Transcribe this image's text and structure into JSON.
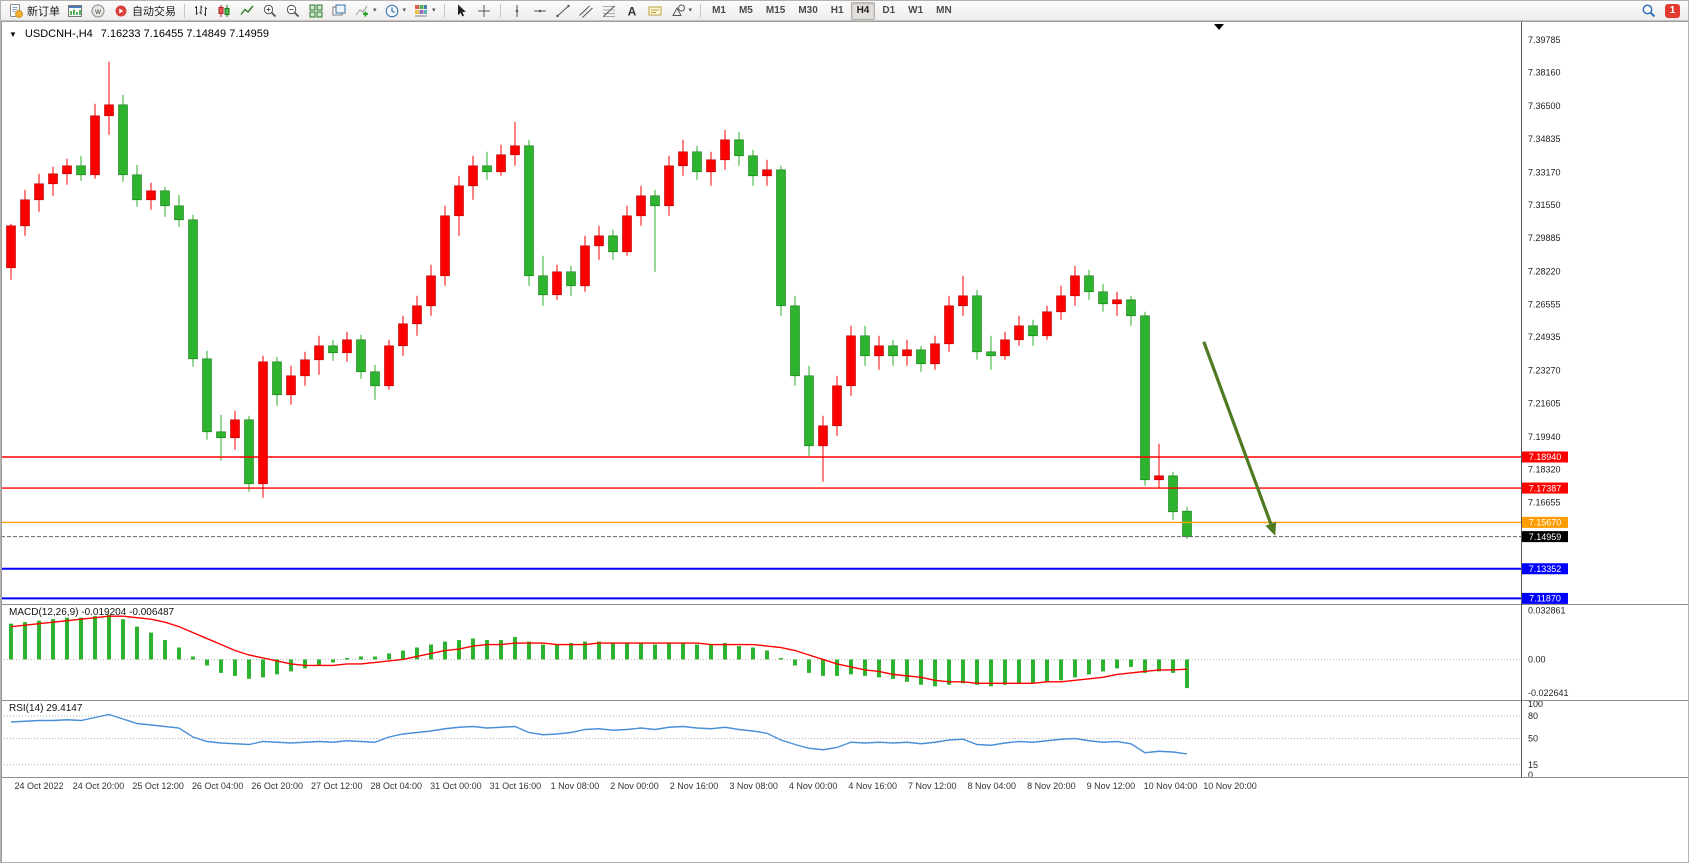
{
  "app": {
    "toolbar": {
      "badge": "1",
      "groups": [
        {
          "items": [
            {
              "name": "new-order-button",
              "icon": "new-order",
              "label": "新订单"
            },
            {
              "name": "open-chart-button",
              "icon": "chart-window"
            },
            {
              "name": "profiles-button",
              "icon": "profiles"
            },
            {
              "name": "auto-trading-button",
              "icon": "autotrade",
              "label": "自动交易"
            }
          ]
        },
        {
          "items": [
            {
              "name": "bar-chart-button",
              "icon": "bars"
            },
            {
              "name": "candlestick-chart-button",
              "icon": "candles"
            },
            {
              "name": "line-chart-button",
              "icon": "linechart"
            },
            {
              "name": "zoom-in-button",
              "icon": "zoom-in"
            },
            {
              "name": "zoom-out-button",
              "icon": "zoom-out"
            },
            {
              "name": "tile-windows-button",
              "icon": "tile"
            },
            {
              "name": "auto-arrange-button",
              "icon": "arrange"
            },
            {
              "name": "indicators-button",
              "icon": "indicators",
              "caret": true
            },
            {
              "name": "periods-button",
              "icon": "clock",
              "caret": true
            },
            {
              "name": "templates-button",
              "icon": "template",
              "caret": true
            }
          ]
        },
        {
          "items": [
            {
              "name": "cursor-button",
              "icon": "cursor"
            },
            {
              "name": "crosshair-button",
              "icon": "crosshair"
            }
          ]
        },
        {
          "items": [
            {
              "name": "vertical-line-button",
              "icon": "vline"
            },
            {
              "name": "horizontal-line-button",
              "icon": "hline"
            },
            {
              "name": "trendline-button",
              "icon": "tline"
            },
            {
              "name": "equidistant-channel-button",
              "icon": "channel"
            },
            {
              "name": "fibonacci-button",
              "icon": "fibo"
            },
            {
              "name": "text-button",
              "icon": "text"
            },
            {
              "name": "text-label-button",
              "icon": "label"
            },
            {
              "name": "shapes-button",
              "icon": "shapes",
              "caret": true
            }
          ]
        },
        {
          "type": "timeframes",
          "items": [
            "M1",
            "M5",
            "M15",
            "M30",
            "H1",
            "H4",
            "D1",
            "W1",
            "MN"
          ],
          "active": "H4"
        }
      ]
    }
  },
  "chart": {
    "symbol_title": "USDCNH-,H4",
    "ohlc": "7.16233 7.16455 7.14849 7.14959",
    "macd_label": "MACD(12,26,9) -0.019204 -0.006487",
    "rsi_label": "RSI(14) 29.4147"
  },
  "chart_data": {
    "type": "candlestick",
    "symbol": "USDCNH",
    "timeframe": "H4",
    "up_color": "#ff0000",
    "down_color": "#2db32d",
    "ylim": [
      7.1164,
      7.4074
    ],
    "y_axis_labels": [
      "7.39785",
      "7.38160",
      "7.36500",
      "7.34835",
      "7.33170",
      "7.31550",
      "7.29885",
      "7.28220",
      "7.26555",
      "7.24935",
      "7.23270",
      "7.21605",
      "7.19940",
      "7.18320",
      "7.16655"
    ],
    "x_labels": [
      "24 Oct 2022",
      "24 Oct 20:00",
      "25 Oct 12:00",
      "26 Oct 04:00",
      "26 Oct 20:00",
      "27 Oct 12:00",
      "28 Oct 04:00",
      "31 Oct 00:00",
      "31 Oct 16:00",
      "1 Nov 08:00",
      "2 Nov 00:00",
      "2 Nov 16:00",
      "3 Nov 08:00",
      "4 Nov 00:00",
      "4 Nov 16:00",
      "7 Nov 12:00",
      "8 Nov 04:00",
      "8 Nov 20:00",
      "9 Nov 12:00",
      "10 Nov 04:00",
      "10 Nov 20:00"
    ],
    "candles": [
      [
        7.284,
        7.306,
        7.278,
        7.305
      ],
      [
        7.305,
        7.323,
        7.3,
        7.318
      ],
      [
        7.318,
        7.331,
        7.312,
        7.326
      ],
      [
        7.326,
        7.3345,
        7.32,
        7.331
      ],
      [
        7.331,
        7.3385,
        7.3255,
        7.335
      ],
      [
        7.335,
        7.34,
        7.3275,
        7.3305
      ],
      [
        7.3305,
        7.366,
        7.3285,
        7.36
      ],
      [
        7.36,
        7.387,
        7.3505,
        7.3655
      ],
      [
        7.3655,
        7.3705,
        7.327,
        7.3305
      ],
      [
        7.3305,
        7.3355,
        7.3145,
        7.318
      ],
      [
        7.318,
        7.3265,
        7.313,
        7.3225
      ],
      [
        7.3225,
        7.3245,
        7.3095,
        7.315
      ],
      [
        7.315,
        7.3205,
        7.3045,
        7.308
      ],
      [
        7.308,
        7.3105,
        7.2345,
        7.2385
      ],
      [
        7.2385,
        7.2425,
        7.198,
        7.202
      ],
      [
        7.202,
        7.2105,
        7.1875,
        7.199
      ],
      [
        7.199,
        7.2125,
        7.193,
        7.208
      ],
      [
        7.208,
        7.21,
        7.172,
        7.176
      ],
      [
        7.176,
        7.24,
        7.169,
        7.237
      ],
      [
        7.237,
        7.2395,
        7.215,
        7.2205
      ],
      [
        7.2205,
        7.235,
        7.2155,
        7.23
      ],
      [
        7.23,
        7.242,
        7.225,
        7.238
      ],
      [
        7.238,
        7.25,
        7.2305,
        7.245
      ],
      [
        7.245,
        7.248,
        7.2375,
        7.2415
      ],
      [
        7.2415,
        7.252,
        7.237,
        7.248
      ],
      [
        7.248,
        7.2505,
        7.2285,
        7.232
      ],
      [
        7.232,
        7.2355,
        7.218,
        7.225
      ],
      [
        7.225,
        7.248,
        7.223,
        7.245
      ],
      [
        7.245,
        7.26,
        7.24,
        7.256
      ],
      [
        7.256,
        7.27,
        7.25,
        7.265
      ],
      [
        7.265,
        7.2855,
        7.26,
        7.28
      ],
      [
        7.28,
        7.315,
        7.275,
        7.31
      ],
      [
        7.31,
        7.33,
        7.3,
        7.325
      ],
      [
        7.325,
        7.34,
        7.318,
        7.335
      ],
      [
        7.335,
        7.342,
        7.328,
        7.332
      ],
      [
        7.332,
        7.3455,
        7.33,
        7.3405
      ],
      [
        7.3405,
        7.357,
        7.335,
        7.345
      ],
      [
        7.345,
        7.348,
        7.275,
        7.28
      ],
      [
        7.28,
        7.29,
        7.265,
        7.2705
      ],
      [
        7.2705,
        7.2855,
        7.268,
        7.282
      ],
      [
        7.282,
        7.285,
        7.27,
        7.275
      ],
      [
        7.275,
        7.3,
        7.272,
        7.295
      ],
      [
        7.295,
        7.305,
        7.288,
        7.3
      ],
      [
        7.3,
        7.303,
        7.288,
        7.292
      ],
      [
        7.292,
        7.315,
        7.29,
        7.31
      ],
      [
        7.31,
        7.325,
        7.305,
        7.32
      ],
      [
        7.32,
        7.323,
        7.282,
        7.315
      ],
      [
        7.315,
        7.34,
        7.31,
        7.335
      ],
      [
        7.335,
        7.348,
        7.33,
        7.342
      ],
      [
        7.342,
        7.345,
        7.328,
        7.332
      ],
      [
        7.332,
        7.342,
        7.325,
        7.338
      ],
      [
        7.338,
        7.353,
        7.333,
        7.348
      ],
      [
        7.348,
        7.352,
        7.335,
        7.34
      ],
      [
        7.34,
        7.343,
        7.325,
        7.33
      ],
      [
        7.33,
        7.338,
        7.325,
        7.333
      ],
      [
        7.333,
        7.335,
        7.26,
        7.265
      ],
      [
        7.265,
        7.27,
        7.225,
        7.23
      ],
      [
        7.23,
        7.235,
        7.19,
        7.195
      ],
      [
        7.195,
        7.21,
        7.177,
        7.205
      ],
      [
        7.205,
        7.23,
        7.2,
        7.225
      ],
      [
        7.225,
        7.255,
        7.22,
        7.25
      ],
      [
        7.25,
        7.255,
        7.235,
        7.24
      ],
      [
        7.24,
        7.25,
        7.233,
        7.245
      ],
      [
        7.245,
        7.248,
        7.235,
        7.24
      ],
      [
        7.24,
        7.248,
        7.235,
        7.243
      ],
      [
        7.243,
        7.245,
        7.232,
        7.236
      ],
      [
        7.236,
        7.25,
        7.233,
        7.246
      ],
      [
        7.246,
        7.27,
        7.242,
        7.265
      ],
      [
        7.265,
        7.28,
        7.26,
        7.27
      ],
      [
        7.27,
        7.273,
        7.238,
        7.242
      ],
      [
        7.242,
        7.25,
        7.233,
        7.24
      ],
      [
        7.24,
        7.252,
        7.238,
        7.248
      ],
      [
        7.248,
        7.26,
        7.245,
        7.255
      ],
      [
        7.255,
        7.258,
        7.245,
        7.25
      ],
      [
        7.25,
        7.265,
        7.248,
        7.262
      ],
      [
        7.262,
        7.275,
        7.258,
        7.27
      ],
      [
        7.27,
        7.285,
        7.265,
        7.28
      ],
      [
        7.28,
        7.283,
        7.268,
        7.272
      ],
      [
        7.272,
        7.276,
        7.262,
        7.266
      ],
      [
        7.266,
        7.272,
        7.26,
        7.268
      ],
      [
        7.268,
        7.27,
        7.255,
        7.26
      ],
      [
        7.26,
        7.262,
        7.175,
        7.178
      ],
      [
        7.178,
        7.196,
        7.174,
        7.18
      ],
      [
        7.18,
        7.182,
        7.158,
        7.162
      ],
      [
        7.16233,
        7.16455,
        7.14849,
        7.14959
      ]
    ],
    "price_lines": [
      {
        "price": 7.1894,
        "label": "7.18940",
        "color": "#ff0000",
        "width": 1.4
      },
      {
        "price": 7.17387,
        "label": "7.17387",
        "color": "#ff0000",
        "width": 1.4
      },
      {
        "price": 7.1567,
        "label": "7.15670",
        "color": "#ff9c00",
        "width": 1.4
      },
      {
        "price": 7.13352,
        "label": "7.13352",
        "color": "#0000ff",
        "width": 2
      },
      {
        "price": 7.1187,
        "label": "7.11870",
        "color": "#0000ff",
        "width": 2
      }
    ],
    "bid_line": {
      "price": 7.14959,
      "label": "7.14959",
      "color": "#000000"
    },
    "arrow": {
      "x1_bar": 85.2,
      "price1": 7.247,
      "x2_bar": 90.3,
      "price2": 7.15,
      "color": "#4f7a21"
    },
    "macd": {
      "hist_color": "#2db32d",
      "signal_color": "#ff0000",
      "ylim": [
        -0.0265,
        0.0365
      ],
      "y_labels": [
        {
          "v": 0.032861,
          "t": "0.032861"
        },
        {
          "v": 0,
          "t": "0.00"
        },
        {
          "v": -0.022641,
          "t": "-0.022641"
        }
      ],
      "hist": [
        0.024,
        0.025,
        0.026,
        0.027,
        0.028,
        0.028,
        0.029,
        0.03,
        0.027,
        0.022,
        0.018,
        0.013,
        0.008,
        0.002,
        -0.004,
        -0.009,
        -0.011,
        -0.013,
        -0.012,
        -0.01,
        -0.008,
        -0.006,
        -0.004,
        -0.002,
        0.001,
        0.002,
        0.002,
        0.004,
        0.006,
        0.008,
        0.01,
        0.012,
        0.013,
        0.014,
        0.013,
        0.013,
        0.015,
        0.012,
        0.01,
        0.01,
        0.011,
        0.012,
        0.012,
        0.011,
        0.011,
        0.011,
        0.01,
        0.011,
        0.011,
        0.01,
        0.01,
        0.011,
        0.009,
        0.008,
        0.006,
        0.001,
        -0.004,
        -0.009,
        -0.011,
        -0.011,
        -0.01,
        -0.011,
        -0.012,
        -0.013,
        -0.015,
        -0.017,
        -0.018,
        -0.017,
        -0.016,
        -0.017,
        -0.018,
        -0.017,
        -0.016,
        -0.016,
        -0.015,
        -0.014,
        -0.012,
        -0.01,
        -0.008,
        -0.006,
        -0.005,
        -0.009,
        -0.008,
        -0.009,
        -0.019204
      ],
      "signal": [
        0.022,
        0.023,
        0.024,
        0.025,
        0.026,
        0.027,
        0.028,
        0.029,
        0.029,
        0.028,
        0.027,
        0.025,
        0.022,
        0.018,
        0.014,
        0.01,
        0.006,
        0.003,
        0.001,
        -0.001,
        -0.003,
        -0.004,
        -0.004,
        -0.004,
        -0.003,
        -0.003,
        -0.002,
        -0.001,
        0.0,
        0.002,
        0.004,
        0.006,
        0.007,
        0.009,
        0.01,
        0.01,
        0.011,
        0.011,
        0.011,
        0.01,
        0.01,
        0.01,
        0.011,
        0.011,
        0.011,
        0.011,
        0.011,
        0.011,
        0.011,
        0.011,
        0.01,
        0.01,
        0.01,
        0.01,
        0.009,
        0.008,
        0.006,
        0.003,
        0.0,
        -0.003,
        -0.005,
        -0.007,
        -0.008,
        -0.01,
        -0.011,
        -0.012,
        -0.014,
        -0.015,
        -0.015,
        -0.016,
        -0.016,
        -0.016,
        -0.016,
        -0.016,
        -0.015,
        -0.015,
        -0.014,
        -0.013,
        -0.012,
        -0.01,
        -0.009,
        -0.008,
        -0.007,
        -0.007,
        -0.006487
      ]
    },
    "rsi": {
      "color": "#4a90d9",
      "ylim": [
        0,
        100
      ],
      "levels": [
        80,
        50,
        15
      ],
      "y_labels": [
        {
          "v": 100,
          "t": "100"
        },
        {
          "v": 80,
          "t": "80"
        },
        {
          "v": 50,
          "t": "50"
        },
        {
          "v": 15,
          "t": "15"
        },
        {
          "v": 0,
          "t": "0"
        }
      ],
      "values": [
        72,
        73,
        74,
        74,
        75,
        74,
        78,
        82,
        76,
        70,
        68,
        66,
        64,
        52,
        46,
        44,
        43,
        42,
        46,
        45,
        44,
        45,
        46,
        45,
        47,
        46,
        45,
        52,
        56,
        58,
        60,
        63,
        65,
        66,
        64,
        65,
        66,
        58,
        55,
        56,
        58,
        62,
        63,
        61,
        62,
        64,
        62,
        65,
        66,
        64,
        63,
        65,
        62,
        60,
        57,
        48,
        42,
        37,
        35,
        38,
        45,
        44,
        45,
        44,
        45,
        43,
        45,
        48,
        49,
        42,
        41,
        44,
        46,
        45,
        47,
        49,
        50,
        47,
        45,
        46,
        43,
        31,
        33,
        32,
        29.4147
      ]
    }
  }
}
